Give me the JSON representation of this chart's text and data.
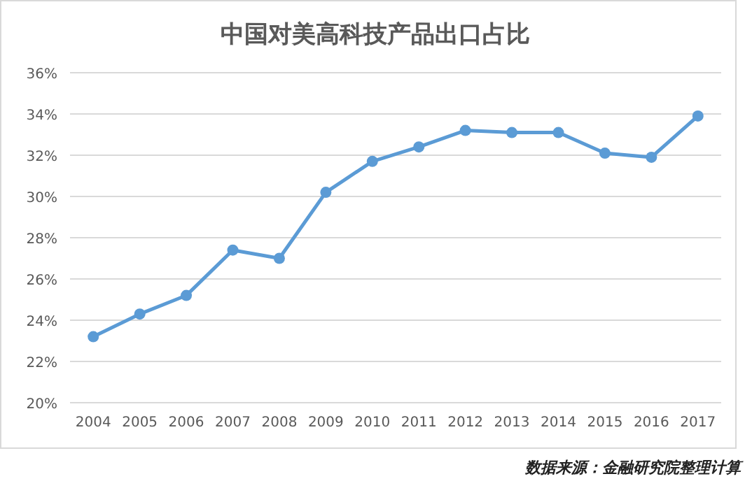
{
  "chart_data": {
    "type": "line",
    "title": "中国对美高科技产品出口占比",
    "categories": [
      "2004",
      "2005",
      "2006",
      "2007",
      "2008",
      "2009",
      "2010",
      "2011",
      "2012",
      "2013",
      "2014",
      "2015",
      "2016",
      "2017"
    ],
    "series": [
      {
        "color": "#5b9bd5",
        "values": [
          23.2,
          24.3,
          25.2,
          27.4,
          27.0,
          30.2,
          31.7,
          32.4,
          33.2,
          33.1,
          33.1,
          32.1,
          31.9,
          33.9
        ]
      }
    ],
    "ylim": [
      20,
      36
    ],
    "yticks": [
      {
        "value": 20,
        "label": "20%"
      },
      {
        "value": 22,
        "label": "22%"
      },
      {
        "value": 24,
        "label": "24%"
      },
      {
        "value": 26,
        "label": "26%"
      },
      {
        "value": 28,
        "label": "28%"
      },
      {
        "value": 30,
        "label": "30%"
      },
      {
        "value": 32,
        "label": "32%"
      },
      {
        "value": 34,
        "label": "34%"
      },
      {
        "value": 36,
        "label": "36%"
      }
    ],
    "grid": "y",
    "marker": "circle",
    "line_style": "solid",
    "annotations": [
      "数据来源：金融研究院整理计算"
    ]
  }
}
